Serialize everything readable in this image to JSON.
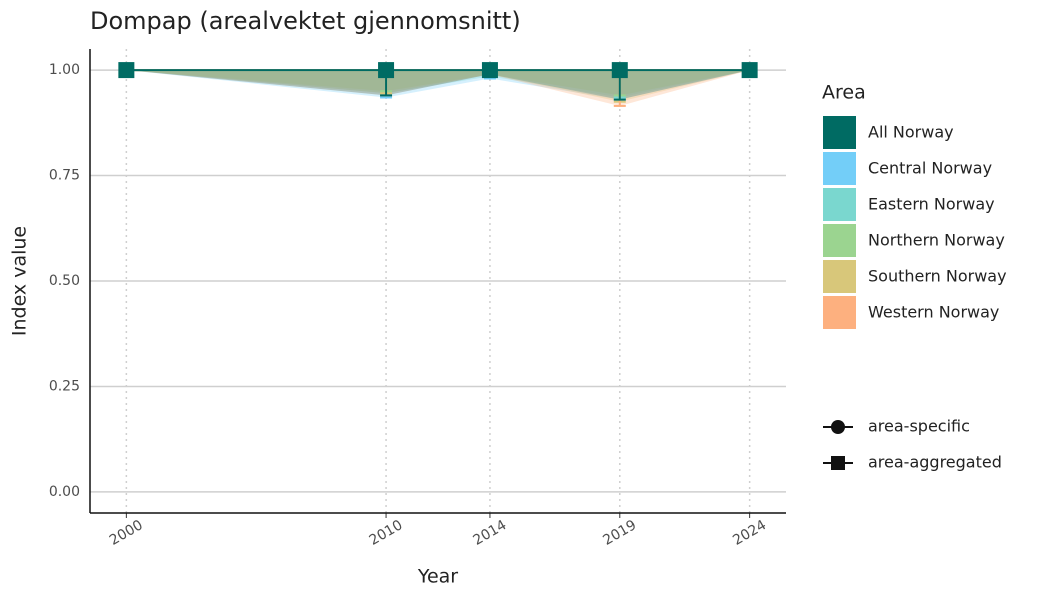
{
  "chart_data": {
    "type": "ribbon-line",
    "title": "Dompap (arealvektet gjennomsnitt)",
    "x_label": "Year",
    "y_label": "Index value",
    "x": [
      2000,
      2010,
      2014,
      2019,
      2024
    ],
    "xlim": [
      1998.6,
      2025.4
    ],
    "xticks": [
      2000,
      2010,
      2014,
      2019,
      2024
    ],
    "ylim": [
      -0.05,
      1.05
    ],
    "yticks": [
      {
        "value": 0,
        "label": "0.00"
      },
      {
        "value": 0.25,
        "label": "0.25"
      },
      {
        "value": 0.5,
        "label": "0.50"
      },
      {
        "value": 0.75,
        "label": "0.75"
      },
      {
        "value": 1,
        "label": "1.00"
      }
    ],
    "grid": true,
    "legend_title": "Area",
    "series": [
      {
        "name": "Central Norway",
        "color": "#73cef8",
        "values": [
          1,
          1,
          1,
          1,
          1
        ],
        "lower": [
          1,
          0.935,
          0.98,
          0.93,
          1
        ],
        "upper": [
          1,
          1,
          1,
          1,
          1
        ]
      },
      {
        "name": "Eastern Norway",
        "color": "#7ad7cf",
        "values": [
          1,
          1,
          1,
          1,
          1
        ],
        "lower": [
          1,
          0.945,
          0.985,
          0.935,
          1
        ],
        "upper": [
          1,
          1,
          1,
          1,
          1
        ]
      },
      {
        "name": "Northern Norway",
        "color": "#9bd490",
        "values": [
          1,
          1,
          1,
          1,
          1
        ],
        "lower": [
          1,
          0.95,
          0.99,
          0.94,
          1
        ],
        "upper": [
          1,
          1,
          1,
          1,
          1
        ]
      },
      {
        "name": "Southern Norway",
        "color": "#d8c77a",
        "values": [
          1,
          1,
          1,
          1,
          1
        ],
        "lower": [
          1,
          0.945,
          0.99,
          0.925,
          1
        ],
        "upper": [
          1,
          1,
          1,
          1,
          1
        ]
      },
      {
        "name": "Western Norway",
        "color": "#fdb07f",
        "values": [
          1,
          1,
          1,
          1,
          1
        ],
        "lower": [
          1,
          0.94,
          0.99,
          0.915,
          1
        ],
        "upper": [
          1,
          1,
          1,
          1,
          1
        ]
      },
      {
        "name": "All Norway",
        "color": "#006b63",
        "aggregated": true,
        "values": [
          1,
          1,
          1,
          1,
          1
        ],
        "lower": [
          1,
          0.94,
          0.99,
          0.93,
          1
        ],
        "upper": [
          1,
          1,
          1,
          1,
          1
        ]
      }
    ],
    "legend_order": [
      5,
      0,
      1,
      2,
      3,
      4
    ],
    "shape_legend": [
      "area-specific",
      "area-aggregated"
    ]
  }
}
